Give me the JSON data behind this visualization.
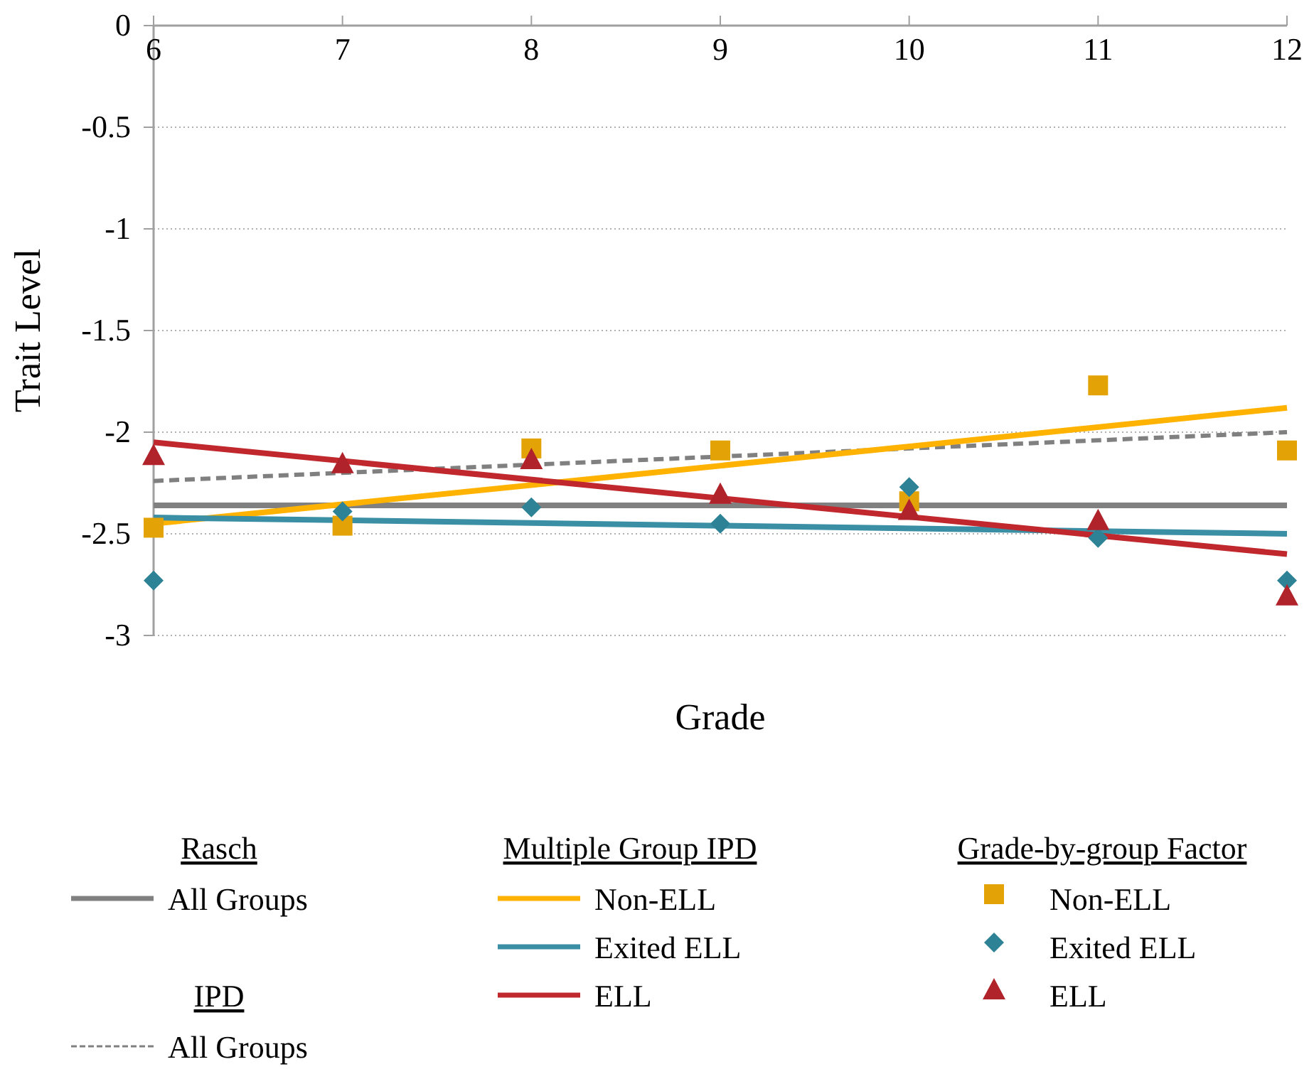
{
  "chart_data": {
    "type": "line",
    "xlabel": "Grade",
    "ylabel": "Trait Level",
    "xlim": [
      6,
      12
    ],
    "xticks": [
      6,
      7,
      8,
      9,
      10,
      11,
      12
    ],
    "ylim": [
      -3,
      0
    ],
    "yticks": [
      -3,
      -2.5,
      -2,
      -1.5,
      -1,
      -0.5,
      0
    ],
    "grid": "y",
    "legend": "bottom",
    "annotations": [
      "Rasch",
      "IPD",
      "Multiple Group IPD",
      "Grade-by-group Factor"
    ],
    "series": [
      {
        "name": "All Groups",
        "color": "#808080",
        "line_style": "solid",
        "marker": "none",
        "x": [
          6,
          12
        ],
        "values": [
          -2.36,
          -2.36
        ]
      },
      {
        "name": "All Groups",
        "color": "#808080",
        "line_style": "dashed",
        "marker": "none",
        "x": [
          6,
          12
        ],
        "values": [
          -2.24,
          -2.0
        ]
      },
      {
        "name": "Non-ELL",
        "color": "#ffb300",
        "line_style": "solid",
        "marker": "none",
        "x": [
          6,
          12
        ],
        "values": [
          -2.45,
          -1.88
        ]
      },
      {
        "name": "Exited ELL",
        "color": "#3a8fa5",
        "line_style": "solid",
        "marker": "none",
        "x": [
          6,
          12
        ],
        "values": [
          -2.42,
          -2.5
        ]
      },
      {
        "name": "ELL",
        "color": "#c0282d",
        "line_style": "solid",
        "marker": "none",
        "x": [
          6,
          12
        ],
        "values": [
          -2.05,
          -2.6
        ]
      },
      {
        "name": "Non-ELL",
        "type": "scatter",
        "color": "#e3a206",
        "marker": "square",
        "x": [
          6,
          7,
          8,
          9,
          10,
          11,
          12
        ],
        "values": [
          -2.47,
          -2.46,
          -2.08,
          -2.09,
          -2.34,
          -1.77,
          -2.09
        ]
      },
      {
        "name": "Exited ELL",
        "type": "scatter",
        "color": "#2e8296",
        "marker": "diamond",
        "x": [
          6,
          7,
          8,
          9,
          10,
          11,
          12
        ],
        "values": [
          -2.73,
          -2.39,
          -2.37,
          -2.45,
          -2.27,
          -2.52,
          -2.73
        ]
      },
      {
        "name": "ELL",
        "type": "scatter",
        "color": "#b0232a",
        "marker": "triangle",
        "x": [
          6,
          7,
          8,
          9,
          10,
          11,
          12
        ],
        "values": [
          -2.12,
          -2.16,
          -2.14,
          -2.31,
          -2.39,
          -2.44,
          -2.81
        ]
      }
    ]
  }
}
